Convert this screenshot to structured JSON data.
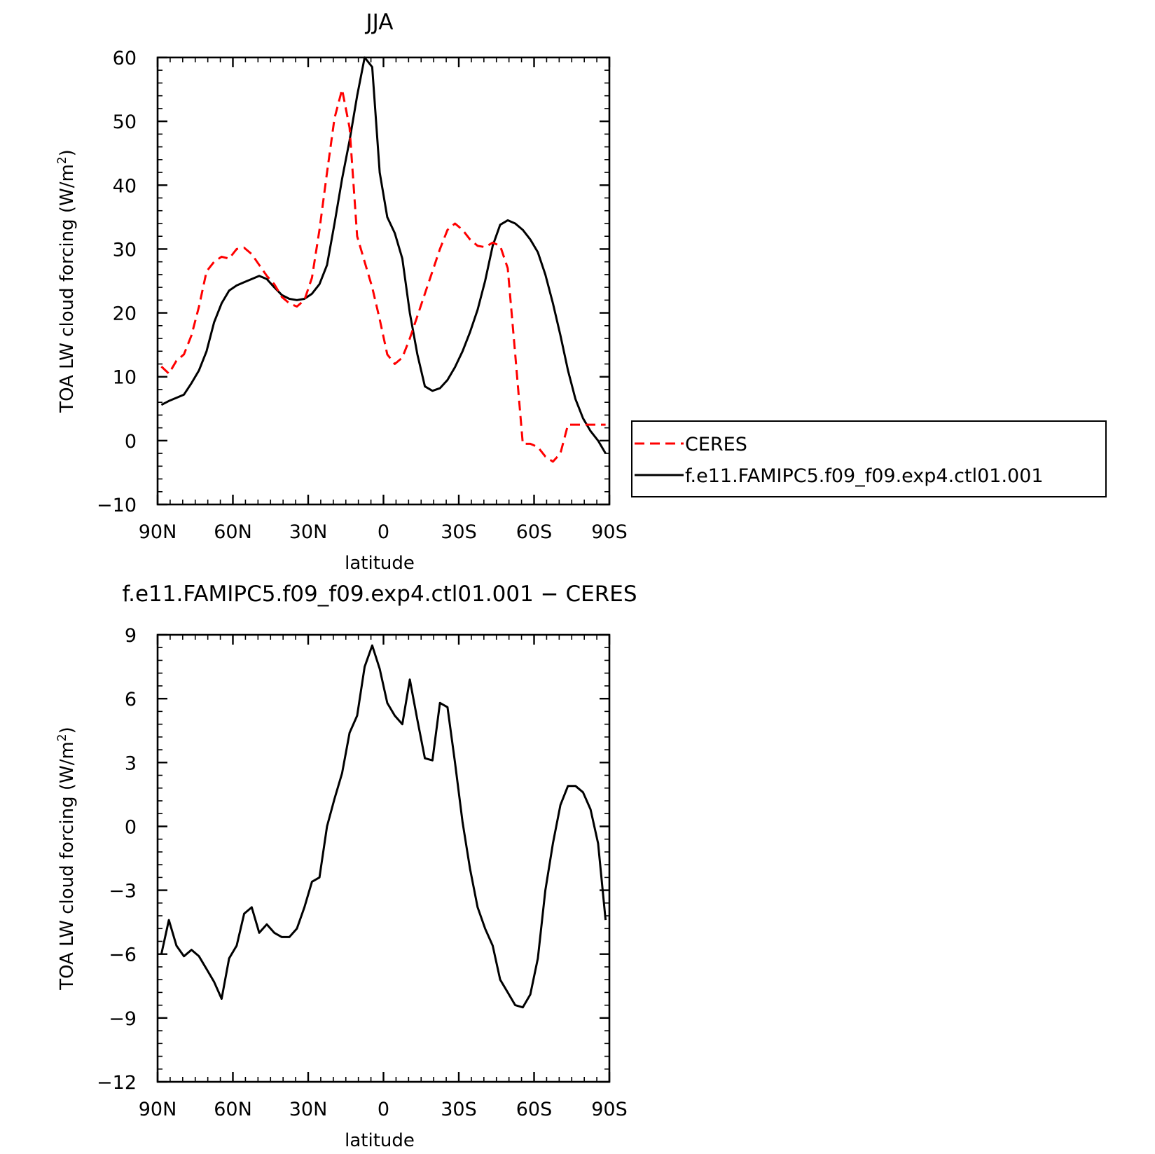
{
  "chart_data": [
    {
      "type": "line",
      "title": "JJA",
      "xlabel": "latitude",
      "ylabel": "TOA LW cloud forcing (W/m",
      "ylabel_sup": "2",
      "ylabel_close": ")",
      "xlim": [
        90,
        -90
      ],
      "ylim": [
        -10,
        60
      ],
      "x_ticks": [
        90,
        60,
        30,
        0,
        -30,
        -60,
        -90
      ],
      "x_tick_labels": [
        "90N",
        "60N",
        "30N",
        "0",
        "30S",
        "60S",
        "90S"
      ],
      "y_ticks": [
        -10,
        0,
        10,
        20,
        30,
        40,
        50,
        60
      ],
      "y_tick_labels": [
        "−10",
        "0",
        "10",
        "20",
        "30",
        "40",
        "50",
        "60"
      ],
      "legend_position": "right",
      "series": [
        {
          "name": "CERES",
          "color": "#ff0000",
          "dash": "dashed",
          "x": [
            88.5,
            85.5,
            82.5,
            79.5,
            76.5,
            73.5,
            70.5,
            67.5,
            64.5,
            61.5,
            58.5,
            55.5,
            52.5,
            49.5,
            46.5,
            43.5,
            40.5,
            37.5,
            34.5,
            31.5,
            28.5,
            25.5,
            22.5,
            19.5,
            16.5,
            13.5,
            10.5,
            7.5,
            4.5,
            1.5,
            -1.5,
            -4.5,
            -7.5,
            -10.5,
            -13.5,
            -16.5,
            -19.5,
            -22.5,
            -25.5,
            -28.5,
            -31.5,
            -34.5,
            -37.5,
            -40.5,
            -43.5,
            -46.5,
            -49.5,
            -52.5,
            -55.5,
            -58.5,
            -61.5,
            -64.5,
            -67.5,
            -70.5,
            -73.5,
            -76.5,
            -79.5,
            -82.5,
            -85.5,
            -88.5
          ],
          "values": [
            11.6,
            10.5,
            12.5,
            13.5,
            16.5,
            21.0,
            26.5,
            28.0,
            28.8,
            28.5,
            30.0,
            30.2,
            29.2,
            27.5,
            25.8,
            24.5,
            22.5,
            21.5,
            21.0,
            22.0,
            25.5,
            33.0,
            42.0,
            50.5,
            55.0,
            49.0,
            32.0,
            28.0,
            24.0,
            19.0,
            13.5,
            12.0,
            13.0,
            16.0,
            19.5,
            23.0,
            26.5,
            30.0,
            33.0,
            34.0,
            33.0,
            31.5,
            30.5,
            30.3,
            31.0,
            30.5,
            27.0,
            13.5,
            -0.5,
            -0.5,
            -1.0,
            -2.5,
            -3.3,
            -2.0,
            2.5,
            2.5,
            2.5,
            2.5,
            2.5,
            2.5
          ]
        },
        {
          "name": "f.e11.FAMIPC5.f09_f09.exp4.ctl01.001",
          "color": "#000000",
          "dash": "solid",
          "x": [
            88.5,
            85.5,
            82.5,
            79.5,
            76.5,
            73.5,
            70.5,
            67.5,
            64.5,
            61.5,
            58.5,
            55.5,
            52.5,
            49.5,
            46.5,
            43.5,
            40.5,
            37.5,
            34.5,
            31.5,
            28.5,
            25.5,
            22.5,
            19.5,
            16.5,
            13.5,
            10.5,
            7.5,
            4.5,
            1.5,
            -1.5,
            -4.5,
            -7.5,
            -10.5,
            -13.5,
            -16.5,
            -19.5,
            -22.5,
            -25.5,
            -28.5,
            -31.5,
            -34.5,
            -37.5,
            -40.5,
            -43.5,
            -46.5,
            -49.5,
            -52.5,
            -55.5,
            -58.5,
            -61.5,
            -64.5,
            -67.5,
            -70.5,
            -73.5,
            -76.5,
            -79.5,
            -82.5,
            -85.5,
            -88.5
          ],
          "values": [
            5.6,
            6.2,
            6.7,
            7.2,
            9.0,
            11.0,
            14.0,
            18.5,
            21.5,
            23.5,
            24.3,
            24.8,
            25.3,
            25.8,
            25.3,
            24.0,
            22.8,
            22.2,
            22.0,
            22.2,
            23.0,
            24.5,
            27.5,
            34.0,
            41.0,
            47.0,
            54.0,
            60.0,
            58.5,
            42.0,
            35.0,
            32.5,
            28.5,
            20.0,
            13.5,
            8.5,
            7.8,
            8.2,
            9.5,
            11.5,
            14.0,
            17.0,
            20.5,
            25.0,
            30.5,
            33.8,
            34.5,
            34.0,
            33.0,
            31.5,
            29.5,
            26.0,
            21.5,
            16.5,
            11.0,
            6.5,
            3.5,
            1.5,
            0.0,
            -2.0
          ]
        }
      ]
    },
    {
      "type": "line",
      "title": "f.e11.FAMIPC5.f09_f09.exp4.ctl01.001 − CERES",
      "xlabel": "latitude",
      "ylabel": "TOA LW cloud forcing (W/m",
      "ylabel_sup": "2",
      "ylabel_close": ")",
      "xlim": [
        90,
        -90
      ],
      "ylim": [
        -12,
        9
      ],
      "x_ticks": [
        90,
        60,
        30,
        0,
        -30,
        -60,
        -90
      ],
      "x_tick_labels": [
        "90N",
        "60N",
        "30N",
        "0",
        "30S",
        "60S",
        "90S"
      ],
      "y_ticks": [
        -12,
        -9,
        -6,
        -3,
        0,
        3,
        6,
        9
      ],
      "y_tick_labels": [
        "−12",
        "−9",
        "−6",
        "−3",
        "0",
        "3",
        "6",
        "9"
      ],
      "series": [
        {
          "color": "#000000",
          "dash": "solid",
          "x": [
            88.5,
            85.5,
            82.5,
            79.5,
            76.5,
            73.5,
            70.5,
            67.5,
            64.5,
            61.5,
            58.5,
            55.5,
            52.5,
            49.5,
            46.5,
            43.5,
            40.5,
            37.5,
            34.5,
            31.5,
            28.5,
            25.5,
            22.5,
            19.5,
            16.5,
            13.5,
            10.5,
            7.5,
            4.5,
            1.5,
            -1.5,
            -4.5,
            -7.5,
            -10.5,
            -13.5,
            -16.5,
            -19.5,
            -22.5,
            -25.5,
            -28.5,
            -31.5,
            -34.5,
            -37.5,
            -40.5,
            -43.5,
            -46.5,
            -49.5,
            -52.5,
            -55.5,
            -58.5,
            -61.5,
            -64.5,
            -67.5,
            -70.5,
            -73.5,
            -76.5,
            -79.5,
            -82.5,
            -85.5,
            -88.5
          ],
          "values": [
            -6.0,
            -4.4,
            -5.6,
            -6.1,
            -5.8,
            -6.1,
            -6.7,
            -7.3,
            -8.1,
            -6.2,
            -5.6,
            -4.1,
            -3.8,
            -5.0,
            -4.6,
            -5.0,
            -5.2,
            -5.2,
            -4.8,
            -3.8,
            -2.6,
            -2.4,
            0.0,
            1.3,
            2.5,
            4.4,
            5.2,
            7.5,
            8.5,
            7.4,
            5.8,
            5.2,
            4.8,
            6.9,
            5.0,
            3.2,
            3.1,
            5.8,
            5.6,
            3.0,
            0.2,
            -2.0,
            -3.8,
            -4.8,
            -5.6,
            -7.2,
            -7.8,
            -8.4,
            -8.5,
            -7.9,
            -6.2,
            -3.0,
            -0.8,
            1.0,
            1.9,
            1.9,
            1.6,
            0.8,
            -0.8,
            -4.4
          ]
        }
      ]
    }
  ]
}
